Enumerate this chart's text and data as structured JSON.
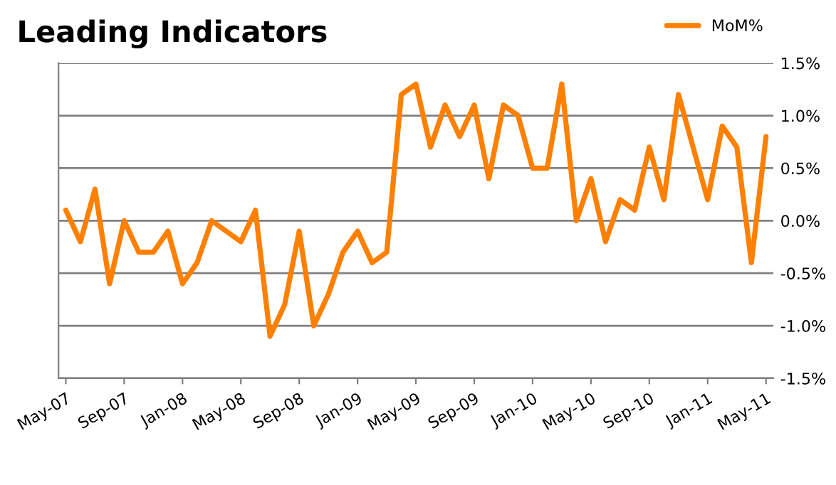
{
  "chart_data": {
    "type": "line",
    "title": "Leading Indicators",
    "categories": [
      "May-07",
      null,
      null,
      null,
      "Sep-07",
      null,
      null,
      null,
      "Jan-08",
      null,
      null,
      null,
      "May-08",
      null,
      null,
      null,
      "Sep-08",
      null,
      null,
      null,
      "Jan-09",
      null,
      null,
      null,
      "May-09",
      null,
      null,
      null,
      "Sep-09",
      null,
      null,
      null,
      "Jan-10",
      null,
      null,
      null,
      "May-10",
      null,
      null,
      null,
      "Sep-10",
      null,
      null,
      null,
      "Jan-11",
      null,
      null,
      null,
      "May-11"
    ],
    "series": [
      {
        "name": "MoM%",
        "color": "#ff8000",
        "values": [
          0.1,
          -0.2,
          0.3,
          -0.6,
          0.0,
          -0.3,
          -0.3,
          -0.1,
          -0.6,
          -0.4,
          0.0,
          -0.1,
          -0.2,
          0.1,
          -1.1,
          -0.8,
          -0.1,
          -1.0,
          -0.7,
          -0.3,
          -0.1,
          -0.4,
          -0.3,
          1.2,
          1.3,
          0.7,
          1.1,
          0.8,
          1.1,
          0.4,
          1.1,
          1.0,
          0.5,
          0.5,
          1.3,
          0.0,
          0.4,
          -0.2,
          0.2,
          0.1,
          0.7,
          0.2,
          1.2,
          0.7,
          0.2,
          0.9,
          0.7,
          -0.4,
          0.8
        ]
      }
    ],
    "ylim": [
      -1.5,
      1.5
    ],
    "yticks": [
      {
        "value": -1.5,
        "label": "-1.5%"
      },
      {
        "value": -1.0,
        "label": "-1.0%"
      },
      {
        "value": -0.5,
        "label": "-0.5%"
      },
      {
        "value": 0.0,
        "label": "0.0%"
      },
      {
        "value": 0.5,
        "label": "0.5%"
      },
      {
        "value": 1.0,
        "label": "1.0%"
      },
      {
        "value": 1.5,
        "label": "1.5%"
      }
    ],
    "grid": "y",
    "legend": "top right"
  }
}
